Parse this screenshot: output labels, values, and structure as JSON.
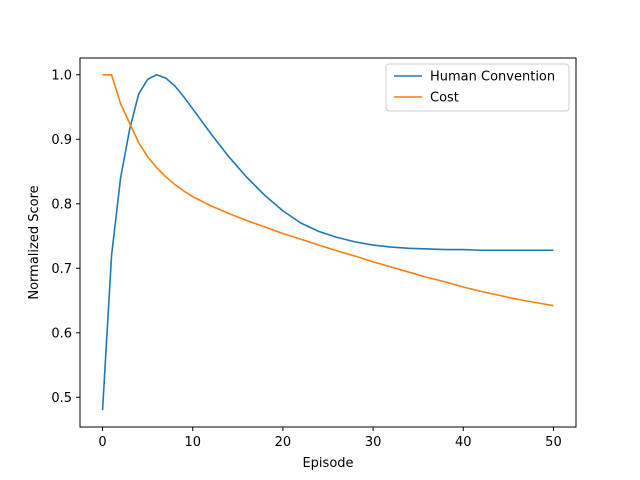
{
  "chart_data": {
    "type": "line",
    "title": "",
    "xlabel": "Episode",
    "ylabel": "Normalized Score",
    "xlim": [
      -2.5,
      52.5
    ],
    "ylim": [
      0.454,
      1.026
    ],
    "xticks": [
      0,
      10,
      20,
      30,
      40,
      50
    ],
    "yticks": [
      0.5,
      0.6,
      0.7,
      0.8,
      0.9,
      1.0
    ],
    "xtick_labels": [
      "0",
      "10",
      "20",
      "30",
      "40",
      "50"
    ],
    "ytick_labels": [
      "0.5",
      "0.6",
      "0.7",
      "0.8",
      "0.9",
      "1.0"
    ],
    "grid": false,
    "legend_position": "top-right",
    "series": [
      {
        "name": "Human Convention",
        "color": "#1f77b4",
        "x": [
          0,
          1,
          2,
          3,
          4,
          5,
          6,
          7,
          8,
          9,
          10,
          12,
          14,
          16,
          18,
          20,
          22,
          24,
          26,
          28,
          30,
          32,
          34,
          36,
          38,
          40,
          42,
          44,
          46,
          48,
          50
        ],
        "y": [
          0.48,
          0.72,
          0.84,
          0.915,
          0.97,
          0.993,
          1.0,
          0.995,
          0.983,
          0.966,
          0.947,
          0.909,
          0.873,
          0.841,
          0.813,
          0.789,
          0.77,
          0.757,
          0.748,
          0.741,
          0.736,
          0.733,
          0.731,
          0.73,
          0.729,
          0.729,
          0.728,
          0.728,
          0.728,
          0.728,
          0.728
        ]
      },
      {
        "name": "Cost",
        "color": "#ff7f0e",
        "x": [
          0,
          1,
          2,
          3,
          4,
          5,
          6,
          7,
          8,
          9,
          10,
          12,
          14,
          16,
          18,
          20,
          22,
          24,
          26,
          28,
          30,
          32,
          34,
          36,
          38,
          40,
          42,
          44,
          46,
          48,
          50
        ],
        "y": [
          1.0,
          1.0,
          0.955,
          0.925,
          0.895,
          0.873,
          0.856,
          0.842,
          0.83,
          0.82,
          0.811,
          0.797,
          0.785,
          0.774,
          0.764,
          0.754,
          0.745,
          0.736,
          0.727,
          0.719,
          0.71,
          0.702,
          0.694,
          0.686,
          0.679,
          0.671,
          0.664,
          0.658,
          0.652,
          0.647,
          0.642
        ]
      }
    ]
  }
}
